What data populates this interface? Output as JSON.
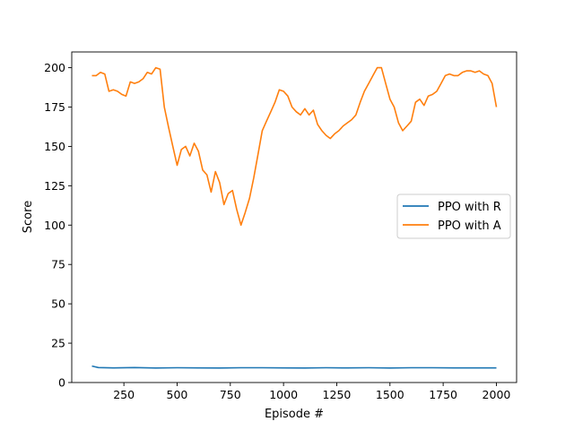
{
  "chart_data": {
    "type": "line",
    "title": "",
    "xlabel": "Episode #",
    "ylabel": "Score",
    "xlim": [
      5,
      2095
    ],
    "ylim": [
      0,
      210
    ],
    "xticks": [
      250,
      500,
      750,
      1000,
      1250,
      1500,
      1750,
      2000
    ],
    "yticks": [
      0,
      25,
      50,
      75,
      100,
      125,
      150,
      175,
      200
    ],
    "grid": false,
    "legend": "center-right",
    "series": [
      {
        "name": "PPO with R",
        "color": "#1f77b4",
        "x": [
          100,
          130,
          200,
          300,
          400,
          500,
          600,
          700,
          800,
          900,
          1000,
          1100,
          1200,
          1300,
          1400,
          1500,
          1600,
          1700,
          1800,
          1900,
          2000
        ],
        "y": [
          10.5,
          9.5,
          9.3,
          9.5,
          9.2,
          9.4,
          9.3,
          9.2,
          9.4,
          9.4,
          9.3,
          9.2,
          9.4,
          9.3,
          9.4,
          9.2,
          9.4,
          9.4,
          9.3,
          9.3,
          9.3
        ]
      },
      {
        "name": "PPO with A",
        "color": "#ff7f0e",
        "x": [
          100,
          120,
          140,
          160,
          180,
          200,
          220,
          240,
          260,
          280,
          300,
          320,
          340,
          360,
          380,
          400,
          420,
          440,
          460,
          480,
          500,
          520,
          540,
          560,
          580,
          600,
          620,
          640,
          660,
          680,
          700,
          720,
          740,
          760,
          780,
          800,
          820,
          840,
          860,
          880,
          900,
          920,
          940,
          960,
          980,
          1000,
          1020,
          1040,
          1060,
          1080,
          1100,
          1120,
          1140,
          1160,
          1180,
          1200,
          1220,
          1240,
          1260,
          1280,
          1300,
          1320,
          1340,
          1360,
          1380,
          1400,
          1420,
          1440,
          1460,
          1480,
          1500,
          1520,
          1540,
          1560,
          1580,
          1600,
          1620,
          1640,
          1660,
          1680,
          1700,
          1720,
          1740,
          1760,
          1780,
          1800,
          1820,
          1840,
          1860,
          1880,
          1900,
          1920,
          1940,
          1960,
          1980,
          2000
        ],
        "y": [
          195,
          195,
          197,
          196,
          185,
          186,
          185,
          183,
          182,
          191,
          190,
          191,
          193,
          197,
          196,
          200,
          199,
          175,
          162,
          150,
          138,
          148,
          150,
          144,
          152,
          147,
          135,
          132,
          121,
          134,
          127,
          113,
          120,
          122,
          110,
          100,
          108,
          117,
          130,
          145,
          160,
          166,
          172,
          178,
          186,
          185,
          182,
          175,
          172,
          170,
          174,
          170,
          173,
          164,
          160,
          157,
          155,
          158,
          160,
          163,
          165,
          167,
          170,
          178,
          185,
          190,
          195,
          200,
          200,
          190,
          180,
          175,
          165,
          160,
          163,
          166,
          178,
          180,
          176,
          182,
          183,
          185,
          190,
          195,
          196,
          195,
          195,
          197,
          198,
          198,
          197,
          198,
          196,
          195,
          190,
          175
        ]
      }
    ]
  }
}
